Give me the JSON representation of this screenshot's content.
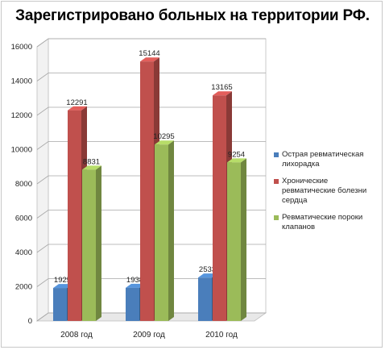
{
  "chart_data": {
    "type": "bar",
    "title": "Зарегистрировано больных на территории РФ.",
    "categories": [
      "2008 год",
      "2009 год",
      "2010 год"
    ],
    "series": [
      {
        "name": "Острая ревматическая лихорадка",
        "values": [
          1925,
          1938,
          2533
        ],
        "color": "#4a7ebb"
      },
      {
        "name": "Хронические ревматические болезни сердца",
        "values": [
          12291,
          15144,
          13165
        ],
        "color": "#c0504d"
      },
      {
        "name": "Ревматические пороки клапанов",
        "values": [
          8831,
          10295,
          9254
        ],
        "color": "#9bbb59"
      }
    ],
    "yticks": [
      "0",
      "2000",
      "4000",
      "6000",
      "8000",
      "10000",
      "12000",
      "14000",
      "16000"
    ],
    "ylim": [
      0,
      16000
    ],
    "xlabel": "",
    "ylabel": "",
    "grid": true,
    "style": "3d-column",
    "legend_position": "right"
  }
}
